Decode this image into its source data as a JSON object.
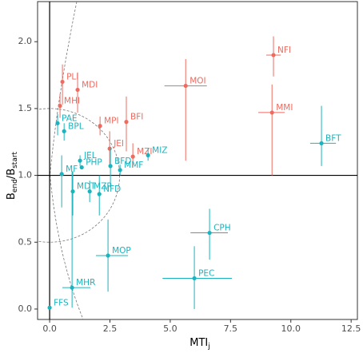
{
  "chart_data": {
    "type": "scatter",
    "x_label": {
      "text": "MTI",
      "sub": "j"
    },
    "y_label": {
      "parts": [
        "B",
        "end",
        "/B",
        "start"
      ]
    },
    "xlim": [
      -0.5,
      12.76
    ],
    "ylim": [
      -0.078,
      2.3
    ],
    "xticks": [
      {
        "value": 0,
        "label": "0.0"
      },
      {
        "value": 2.5,
        "label": "2.5"
      },
      {
        "value": 5,
        "label": "5.0"
      },
      {
        "value": 7.5,
        "label": "7.5"
      },
      {
        "value": 10,
        "label": "10.0"
      },
      {
        "value": 12.5,
        "label": "12.5"
      }
    ],
    "yticks": [
      {
        "value": 0,
        "label": "0.0"
      },
      {
        "value": 0.5,
        "label": "0.5"
      },
      {
        "value": 1,
        "label": "1.0"
      },
      {
        "value": 1.5,
        "label": "1.5"
      },
      {
        "value": 2,
        "label": "2.0"
      }
    ],
    "reference_lines": {
      "x": 0,
      "y": 1
    },
    "points": [
      {
        "label": "NFI",
        "color": "#ee6b5f",
        "x": 9.28,
        "y": 1.9,
        "x_lo": 8.98,
        "x_hi": 9.58,
        "y_lo": 1.74,
        "y_hi": 2.04
      },
      {
        "label": "MOI",
        "color": "#ee6b5f",
        "x": 5.64,
        "y": 1.67,
        "x_lo": 4.76,
        "x_hi": 6.52,
        "y_lo": 1.11,
        "y_hi": 1.87
      },
      {
        "label": "MMI",
        "color": "#ee6b5f",
        "x": 9.22,
        "y": 1.47,
        "x_lo": 8.65,
        "x_hi": 9.75,
        "y_lo": 1.0,
        "y_hi": 1.68
      },
      {
        "label": "PLI",
        "color": "#ee6b5f",
        "x": 0.53,
        "y": 1.7,
        "y_lo": 1.53,
        "y_hi": 1.83
      },
      {
        "label": "MDI",
        "color": "#ee6b5f",
        "x": 1.16,
        "y": 1.64,
        "y_lo": 1.47,
        "y_hi": 1.77
      },
      {
        "label": "MHI",
        "color": "#ee6b5f",
        "x": 0.43,
        "y": 1.52,
        "y_lo": 1.43,
        "y_hi": 1.61
      },
      {
        "label": "BFI",
        "color": "#ee6b5f",
        "x": 3.18,
        "y": 1.4,
        "y_lo": 1.18,
        "y_hi": 1.59
      },
      {
        "label": "MPI",
        "color": "#ee6b5f",
        "x": 2.09,
        "y": 1.37,
        "y_lo": 1.3,
        "y_hi": 1.44
      },
      {
        "label": "JEI",
        "color": "#ee6b5f",
        "x": 2.49,
        "y": 1.2,
        "y_lo": 1.06,
        "y_hi": 1.33
      },
      {
        "label": "MZI",
        "color": "#ee6b5f",
        "x": 3.45,
        "y": 1.14,
        "y_lo": 1.06,
        "y_hi": 1.24
      },
      {
        "label": "PAE",
        "color": "#1bb3bd",
        "x": 0.33,
        "y": 1.39,
        "y_lo": 1.3,
        "y_hi": 1.46
      },
      {
        "label": "BPL",
        "color": "#1bb3bd",
        "x": 0.6,
        "y": 1.33,
        "y_lo": 1.26,
        "y_hi": 1.39
      },
      {
        "label": "BFT",
        "color": "#1bb3bd",
        "x": 11.27,
        "y": 1.24,
        "x_lo": 10.8,
        "x_hi": 11.87,
        "y_lo": 1.07,
        "y_hi": 1.52
      },
      {
        "label": "MIZ",
        "color": "#1bb3bd",
        "x": 4.08,
        "y": 1.15,
        "y_lo": 1.11,
        "y_hi": 1.2
      },
      {
        "label": "JEL",
        "color": "#1bb3bd",
        "x": 1.26,
        "y": 1.11,
        "y_lo": 1.07,
        "y_hi": 1.15
      },
      {
        "label": "PHP",
        "color": "#1bb3bd",
        "x": 1.33,
        "y": 1.06
      },
      {
        "label": "BFD",
        "color": "#1bb3bd",
        "x": 2.52,
        "y": 1.07,
        "y_lo": 0.91,
        "y_hi": 1.21
      },
      {
        "label": "MMF",
        "color": "#1bb3bd",
        "x": 2.92,
        "y": 1.04,
        "y_lo": 1.0,
        "y_hi": 1.08
      },
      {
        "label": "MF",
        "color": "#1bb3bd",
        "x": 0.5,
        "y": 1.01,
        "y_lo": 0.76,
        "y_hi": 1.15
      },
      {
        "label": "MDT",
        "color": "#1bb3bd",
        "x": 0.96,
        "y": 0.88,
        "y_lo": 0.7,
        "y_hi": 1.03
      },
      {
        "label": "MZP",
        "color": "#1bb3bd",
        "x": 1.66,
        "y": 0.88,
        "y_lo": 0.8,
        "y_hi": 0.96
      },
      {
        "label": "NFD",
        "color": "#1bb3bd",
        "x": 2.06,
        "y": 0.86,
        "y_lo": 0.7,
        "y_hi": 1.0
      },
      {
        "label": "CPH",
        "color": "#1bb3bd",
        "x": 6.63,
        "y": 0.57,
        "x_lo": 5.84,
        "x_hi": 7.39,
        "y_lo": 0.37,
        "y_hi": 0.75
      },
      {
        "label": "MOP",
        "color": "#1bb3bd",
        "x": 2.42,
        "y": 0.4,
        "x_lo": 1.92,
        "x_hi": 3.25,
        "y_lo": 0.13,
        "y_hi": 0.67
      },
      {
        "label": "PEC",
        "color": "#1bb3bd",
        "x": 6.0,
        "y": 0.23,
        "x_lo": 4.68,
        "x_hi": 7.56,
        "y_lo": 0.0,
        "y_hi": 0.47
      },
      {
        "label": "MHR",
        "color": "#1bb3bd",
        "x": 0.93,
        "y": 0.16,
        "x_lo": 0.53,
        "x_hi": 1.69,
        "y_lo": 0.01,
        "y_hi": 1.03
      },
      {
        "label": "FFS",
        "color": "#1bb3bd",
        "x": 0.0,
        "y": 0.01
      }
    ]
  }
}
